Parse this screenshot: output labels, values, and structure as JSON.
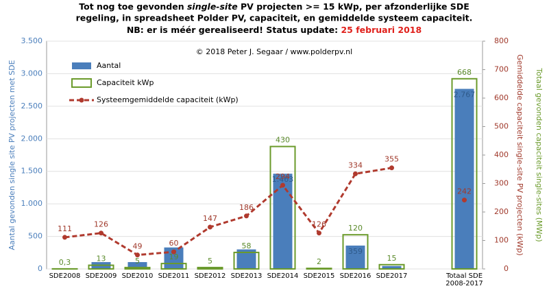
{
  "chart_data": {
    "type": "bar",
    "title": [
      "Tot nog toe gevonden ",
      "single-site",
      " PV projecten >= 15 kWp, per afzonderlijke SDE",
      "regeling, in spreadsheet Polder PV, capaciteit, en gemiddelde systeem capaciteit.",
      "NB: er is méér gerealiseerd! Status update: ",
      "25 februari 2018"
    ],
    "annotation": "© 2018 Peter J. Segaar / www.polderpv.nl",
    "ylabel": "Aantal gevonden single site PV projecten met SDE",
    "y2label": "Gemiddelde capaciteit single-site PV projecten (kWp)",
    "y3label": "Totaal gevonden capaciteit single-sites (MWp)",
    "categories": [
      "SDE2008",
      "SDE2009",
      "SDE2010",
      "SDE2011",
      "SDE2012",
      "SDE2013",
      "SDE2014",
      "SDE2015",
      "SDE2016",
      "SDE2017",
      null,
      "Totaal SDE 2008-2017"
    ],
    "series": [
      {
        "name": "Aantal",
        "type": "bar",
        "color": "#4a7ebb",
        "values": [
          3,
          105,
          105,
          330,
          15,
          300,
          1463,
          10,
          359,
          45,
          null,
          2767
        ],
        "value_labels": [
          null,
          null,
          null,
          null,
          null,
          null,
          "1.463",
          null,
          "359",
          null,
          null,
          "2.767"
        ]
      },
      {
        "name": "Capaciteit kWp",
        "type": "outline_bar",
        "color": "#6a9a2a",
        "axis": "y2",
        "values": [
          0.3,
          13,
          5,
          19,
          5,
          58,
          430,
          2,
          120,
          15,
          null,
          668
        ],
        "value_labels": [
          "0,3",
          "13",
          "5",
          "19",
          "5",
          "58",
          "430",
          "2",
          "120",
          "15",
          null,
          "668"
        ]
      },
      {
        "name": "Systeemgemiddelde capaciteit (kWp)",
        "type": "line",
        "color": "#b03a2e",
        "axis": "y2",
        "values": [
          111,
          126,
          49,
          60,
          147,
          186,
          294,
          126,
          334,
          355,
          null,
          242
        ]
      }
    ],
    "ylim": [
      0,
      3500
    ],
    "yticks": [
      0,
      500,
      {
        "value": 1000,
        "label": "1.000"
      },
      {
        "value": 1500,
        "label": "1.500"
      },
      {
        "value": 2000,
        "label": "2.000"
      },
      {
        "value": 2500,
        "label": "2.500"
      },
      {
        "value": 3000,
        "label": "3.000"
      },
      {
        "value": 3500,
        "label": "3.500"
      }
    ],
    "y2lim": [
      0,
      800
    ],
    "y2ticks": [
      0,
      100,
      200,
      300,
      400,
      500,
      600,
      700,
      800
    ],
    "grid": true,
    "legend": "upper left"
  }
}
